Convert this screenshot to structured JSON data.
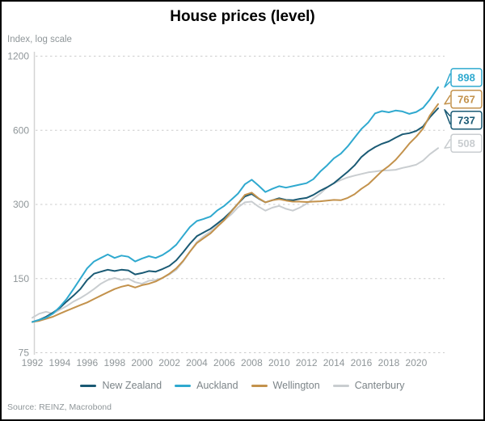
{
  "header": {
    "title": "House prices (level)",
    "axis_unit_label": "Index, log scale"
  },
  "footer": {
    "source": "Source: REINZ, Macrobond"
  },
  "colors": {
    "new_zealand": "#1a5a74",
    "auckland": "#2fa9cf",
    "wellington": "#c3924c",
    "canterbury": "#c9cdd0",
    "gridline": "#cccccc",
    "axis_text": "#8f9699"
  },
  "chart_data": {
    "type": "line",
    "title": "House prices (level)",
    "ylabel": "Index, log scale",
    "y_scale": "log",
    "grid": "horizontal-dashed",
    "legend_position": "bottom",
    "y_ticks": [
      1200,
      600,
      300,
      150,
      75
    ],
    "x_ticks": [
      1992,
      1994,
      1996,
      1998,
      2000,
      2002,
      2004,
      2006,
      2008,
      2010,
      2012,
      2014,
      2016,
      2018,
      2020
    ],
    "x_range": [
      1992,
      2021.6
    ],
    "y_range": [
      75,
      1200
    ],
    "series": [
      {
        "name": "New Zealand",
        "color": "#1a5a74",
        "end_label": "737",
        "points": [
          [
            1992,
            100
          ],
          [
            1992.5,
            102
          ],
          [
            1993,
            105
          ],
          [
            1993.5,
            109
          ],
          [
            1994,
            114
          ],
          [
            1994.5,
            121
          ],
          [
            1995,
            128
          ],
          [
            1995.5,
            136
          ],
          [
            1996,
            148
          ],
          [
            1996.5,
            157
          ],
          [
            1997,
            160
          ],
          [
            1997.5,
            163
          ],
          [
            1998,
            161
          ],
          [
            1998.5,
            163
          ],
          [
            1999,
            162
          ],
          [
            1999.5,
            156
          ],
          [
            2000,
            158
          ],
          [
            2000.5,
            161
          ],
          [
            2001,
            160
          ],
          [
            2001.5,
            164
          ],
          [
            2002,
            169
          ],
          [
            2002.5,
            178
          ],
          [
            2003,
            192
          ],
          [
            2003.5,
            208
          ],
          [
            2004,
            223
          ],
          [
            2004.5,
            231
          ],
          [
            2005,
            239
          ],
          [
            2005.5,
            251
          ],
          [
            2006,
            264
          ],
          [
            2006.5,
            281
          ],
          [
            2007,
            302
          ],
          [
            2007.5,
            323
          ],
          [
            2008,
            331
          ],
          [
            2008.5,
            317
          ],
          [
            2009,
            306
          ],
          [
            2009.5,
            312
          ],
          [
            2010,
            318
          ],
          [
            2010.5,
            313
          ],
          [
            2011,
            312
          ],
          [
            2011.5,
            316
          ],
          [
            2012,
            319
          ],
          [
            2012.5,
            328
          ],
          [
            2013,
            341
          ],
          [
            2013.5,
            352
          ],
          [
            2014,
            366
          ],
          [
            2014.5,
            386
          ],
          [
            2015,
            407
          ],
          [
            2015.5,
            432
          ],
          [
            2016,
            467
          ],
          [
            2016.5,
            493
          ],
          [
            2017,
            513
          ],
          [
            2017.5,
            529
          ],
          [
            2018,
            541
          ],
          [
            2018.5,
            560
          ],
          [
            2019,
            578
          ],
          [
            2019.5,
            584
          ],
          [
            2020,
            596
          ],
          [
            2020.5,
            622
          ],
          [
            2021,
            678
          ],
          [
            2021.6,
            737
          ]
        ]
      },
      {
        "name": "Auckland",
        "color": "#2fa9cf",
        "end_label": "898",
        "points": [
          [
            1992,
            100
          ],
          [
            1992.5,
            102
          ],
          [
            1993,
            104
          ],
          [
            1993.5,
            108
          ],
          [
            1994,
            115
          ],
          [
            1994.5,
            124
          ],
          [
            1995,
            136
          ],
          [
            1995.5,
            150
          ],
          [
            1996,
            165
          ],
          [
            1996.5,
            176
          ],
          [
            1997,
            182
          ],
          [
            1997.5,
            188
          ],
          [
            1998,
            182
          ],
          [
            1998.5,
            186
          ],
          [
            1999,
            184
          ],
          [
            1999.5,
            176
          ],
          [
            2000,
            181
          ],
          [
            2000.5,
            185
          ],
          [
            2001,
            182
          ],
          [
            2001.5,
            187
          ],
          [
            2002,
            195
          ],
          [
            2002.5,
            206
          ],
          [
            2003,
            224
          ],
          [
            2003.5,
            243
          ],
          [
            2004,
            257
          ],
          [
            2004.5,
            262
          ],
          [
            2005,
            268
          ],
          [
            2005.5,
            284
          ],
          [
            2006,
            296
          ],
          [
            2006.5,
            313
          ],
          [
            2007,
            332
          ],
          [
            2007.5,
            362
          ],
          [
            2008,
            378
          ],
          [
            2008.5,
            358
          ],
          [
            2009,
            337
          ],
          [
            2009.5,
            347
          ],
          [
            2010,
            356
          ],
          [
            2010.5,
            351
          ],
          [
            2011,
            356
          ],
          [
            2011.5,
            361
          ],
          [
            2012,
            366
          ],
          [
            2012.5,
            380
          ],
          [
            2013,
            408
          ],
          [
            2013.5,
            432
          ],
          [
            2014,
            462
          ],
          [
            2014.5,
            482
          ],
          [
            2015,
            516
          ],
          [
            2015.5,
            560
          ],
          [
            2016,
            607
          ],
          [
            2016.5,
            645
          ],
          [
            2017,
            703
          ],
          [
            2017.5,
            718
          ],
          [
            2018,
            710
          ],
          [
            2018.5,
            722
          ],
          [
            2019,
            716
          ],
          [
            2019.5,
            700
          ],
          [
            2020,
            712
          ],
          [
            2020.5,
            740
          ],
          [
            2021,
            800
          ],
          [
            2021.6,
            898
          ]
        ]
      },
      {
        "name": "Wellington",
        "color": "#c3924c",
        "end_label": "767",
        "points": [
          [
            1992,
            100
          ],
          [
            1992.5,
            101
          ],
          [
            1993,
            103
          ],
          [
            1993.5,
            105
          ],
          [
            1994,
            108
          ],
          [
            1994.5,
            111
          ],
          [
            1995,
            114
          ],
          [
            1995.5,
            117
          ],
          [
            1996,
            120
          ],
          [
            1996.5,
            124
          ],
          [
            1997,
            128
          ],
          [
            1997.5,
            132
          ],
          [
            1998,
            136
          ],
          [
            1998.5,
            139
          ],
          [
            1999,
            141
          ],
          [
            1999.5,
            138
          ],
          [
            2000,
            141
          ],
          [
            2000.5,
            143
          ],
          [
            2001,
            146
          ],
          [
            2001.5,
            151
          ],
          [
            2002,
            157
          ],
          [
            2002.5,
            165
          ],
          [
            2003,
            177
          ],
          [
            2003.5,
            193
          ],
          [
            2004,
            209
          ],
          [
            2004.5,
            219
          ],
          [
            2005,
            229
          ],
          [
            2005.5,
            244
          ],
          [
            2006,
            259
          ],
          [
            2006.5,
            280
          ],
          [
            2007,
            302
          ],
          [
            2007.5,
            328
          ],
          [
            2008,
            335
          ],
          [
            2008.5,
            318
          ],
          [
            2009,
            306
          ],
          [
            2009.5,
            312
          ],
          [
            2010,
            315
          ],
          [
            2010.5,
            311
          ],
          [
            2011,
            308
          ],
          [
            2011.5,
            308
          ],
          [
            2012,
            307
          ],
          [
            2012.5,
            308
          ],
          [
            2013,
            309
          ],
          [
            2013.5,
            311
          ],
          [
            2014,
            313
          ],
          [
            2014.5,
            312
          ],
          [
            2015,
            319
          ],
          [
            2015.5,
            330
          ],
          [
            2016,
            347
          ],
          [
            2016.5,
            362
          ],
          [
            2017,
            385
          ],
          [
            2017.5,
            410
          ],
          [
            2018,
            430
          ],
          [
            2018.5,
            455
          ],
          [
            2019,
            490
          ],
          [
            2019.5,
            530
          ],
          [
            2020,
            565
          ],
          [
            2020.5,
            610
          ],
          [
            2021,
            690
          ],
          [
            2021.6,
            767
          ]
        ]
      },
      {
        "name": "Canterbury",
        "color": "#c9cdd0",
        "end_label": "508",
        "points": [
          [
            1992,
            104
          ],
          [
            1992.5,
            108
          ],
          [
            1993,
            110
          ],
          [
            1993.5,
            108
          ],
          [
            1994,
            112
          ],
          [
            1994.5,
            116
          ],
          [
            1995,
            121
          ],
          [
            1995.5,
            125
          ],
          [
            1996,
            130
          ],
          [
            1996.5,
            136
          ],
          [
            1997,
            143
          ],
          [
            1997.5,
            148
          ],
          [
            1998,
            151
          ],
          [
            1998.5,
            148
          ],
          [
            1999,
            150
          ],
          [
            1999.5,
            145
          ],
          [
            2000,
            143
          ],
          [
            2000.5,
            147
          ],
          [
            2001,
            148
          ],
          [
            2001.5,
            151
          ],
          [
            2002,
            156
          ],
          [
            2002.5,
            163
          ],
          [
            2003,
            176
          ],
          [
            2003.5,
            193
          ],
          [
            2004,
            211
          ],
          [
            2004.5,
            223
          ],
          [
            2005,
            233
          ],
          [
            2005.5,
            246
          ],
          [
            2006,
            259
          ],
          [
            2006.5,
            273
          ],
          [
            2007,
            292
          ],
          [
            2007.5,
            306
          ],
          [
            2008,
            308
          ],
          [
            2008.5,
            294
          ],
          [
            2009,
            283
          ],
          [
            2009.5,
            291
          ],
          [
            2010,
            296
          ],
          [
            2010.5,
            288
          ],
          [
            2011,
            283
          ],
          [
            2011.5,
            291
          ],
          [
            2012,
            302
          ],
          [
            2012.5,
            317
          ],
          [
            2013,
            332
          ],
          [
            2013.5,
            352
          ],
          [
            2014,
            366
          ],
          [
            2014.5,
            377
          ],
          [
            2015,
            386
          ],
          [
            2015.5,
            393
          ],
          [
            2016,
            399
          ],
          [
            2016.5,
            405
          ],
          [
            2017,
            408
          ],
          [
            2017.5,
            412
          ],
          [
            2018,
            413
          ],
          [
            2018.5,
            415
          ],
          [
            2019,
            422
          ],
          [
            2019.5,
            428
          ],
          [
            2020,
            435
          ],
          [
            2020.5,
            452
          ],
          [
            2021,
            480
          ],
          [
            2021.6,
            508
          ]
        ]
      }
    ]
  }
}
